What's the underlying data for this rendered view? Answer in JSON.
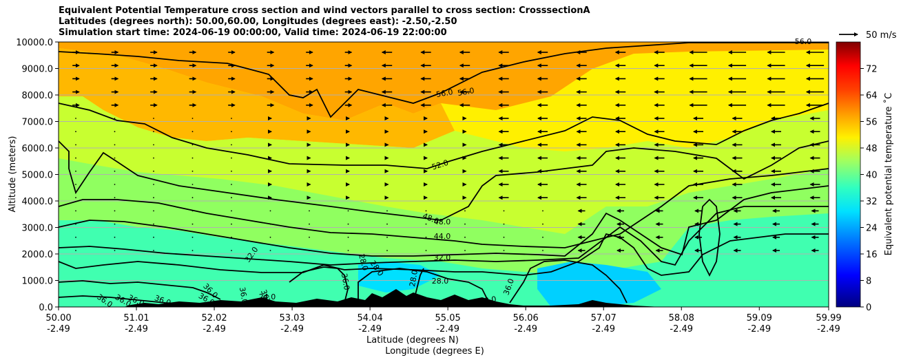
{
  "title_lines": [
    "Equivalent Potential Temperature cross section and wind vectors parallel to cross section: CrosssectionA",
    "Latitudes (degrees north): 50.00,60.00, Longitudes (degrees east): -2.50,-2.50",
    "Simulation start time: 2024-06-19 00:00:00, Valid time: 2024-06-19 22:00:00"
  ],
  "chart_data": {
    "type": "filled-contour cross section with wind vectors",
    "ylabel": "Altitude (meters)",
    "xlabel_lat": "Latitude (degrees N)",
    "xlabel_lon": "Longitude (degrees E)",
    "ylim": [
      0,
      10000
    ],
    "y_ticks": [
      "0.0",
      "1000.0",
      "2000.0",
      "3000.0",
      "4000.0",
      "5000.0",
      "6000.0",
      "7000.0",
      "8000.0",
      "9000.0",
      "10000.0"
    ],
    "y_tick_values": [
      0,
      1000,
      2000,
      3000,
      4000,
      5000,
      6000,
      7000,
      8000,
      9000,
      10000
    ],
    "x_ticks_lat": [
      "50.00",
      "51.01",
      "52.02",
      "53.03",
      "54.04",
      "55.05",
      "56.06",
      "57.07",
      "58.08",
      "59.09",
      "59.99"
    ],
    "x_ticks_lon": [
      "-2.49",
      "-2.49",
      "-2.49",
      "-2.49",
      "-2.49",
      "-2.49",
      "-2.49",
      "-2.49",
      "-2.49",
      "-2.49",
      "-2.49"
    ],
    "x_tick_values": [
      50.0,
      51.01,
      52.02,
      53.03,
      54.04,
      55.05,
      56.06,
      57.07,
      58.08,
      59.09,
      59.99
    ],
    "xlim": [
      50.0,
      59.99
    ],
    "colorbar": {
      "label": "Equivalent potential temperature ˚C",
      "range": [
        0,
        80
      ],
      "ticks": [
        "0",
        "8",
        "16",
        "24",
        "32",
        "40",
        "48",
        "56",
        "64",
        "72"
      ],
      "tick_values": [
        0,
        8,
        16,
        24,
        32,
        40,
        48,
        56,
        64,
        72
      ]
    },
    "wind_key_label": "50 m/s",
    "contour_labels": [
      "56.0",
      "56.0",
      "52.0",
      "48.0",
      "48.0",
      "44.0",
      "32.0",
      "32.0",
      "28.0",
      "28.0",
      "28.0",
      "36.0",
      "36.0",
      "36.0",
      "36.0",
      "36.0",
      "36.0",
      "36.0",
      "36.0",
      "36.0",
      "36.0",
      "24.0",
      "28.0",
      "28.0",
      "56.0"
    ],
    "colors": {
      "orange": "#ffa500",
      "yellow": "#fff000",
      "green": "#50ff8a",
      "cyan": "#00e0ff",
      "terrain": "#000000"
    }
  }
}
